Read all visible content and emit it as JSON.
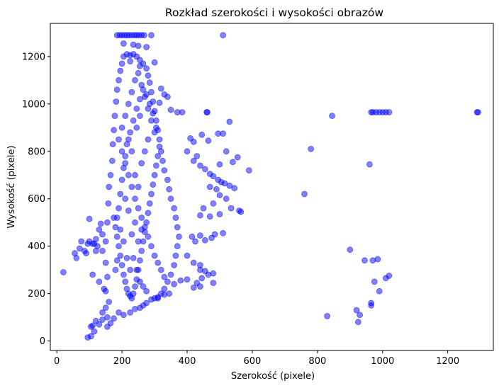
{
  "chart_data": {
    "type": "scatter",
    "title": "Rozkład szerokości i wysokości obrazów",
    "xlabel": "Szerokość (pixele)",
    "ylabel": "Wysokość (pixele)",
    "xlim": [
      -20,
      1340
    ],
    "ylim": [
      -40,
      1340
    ],
    "xticks": [
      0,
      200,
      400,
      600,
      800,
      1000,
      1200
    ],
    "yticks": [
      0,
      200,
      400,
      600,
      800,
      1000,
      1200
    ],
    "grid": false,
    "legend": "none",
    "marker_color": "#0000ff",
    "marker_alpha": 0.5,
    "series": [
      {
        "points": [
          [
            185,
            1290
          ],
          [
            193,
            1290
          ],
          [
            200,
            1290
          ],
          [
            208,
            1290
          ],
          [
            215,
            1290
          ],
          [
            222,
            1290
          ],
          [
            230,
            1290
          ],
          [
            238,
            1290
          ],
          [
            245,
            1290
          ],
          [
            252,
            1290
          ],
          [
            260,
            1290
          ],
          [
            268,
            1290
          ],
          [
            290,
            1290
          ],
          [
            510,
            1290
          ],
          [
            205,
            1255
          ],
          [
            235,
            1250
          ],
          [
            250,
            1245
          ],
          [
            275,
            1240
          ],
          [
            300,
            1175
          ],
          [
            225,
            1180
          ],
          [
            255,
            1160
          ],
          [
            320,
            1065
          ],
          [
            330,
            1040
          ],
          [
            340,
            1030
          ],
          [
            315,
            1005
          ],
          [
            350,
            975
          ],
          [
            370,
            965
          ],
          [
            385,
            965
          ],
          [
            460,
            965
          ],
          [
            462,
            965
          ],
          [
            530,
            925
          ],
          [
            510,
            875
          ],
          [
            495,
            875
          ],
          [
            445,
            870
          ],
          [
            465,
            845
          ],
          [
            520,
            800
          ],
          [
            410,
            855
          ],
          [
            420,
            840
          ],
          [
            400,
            800
          ],
          [
            430,
            780
          ],
          [
            420,
            760
          ],
          [
            440,
            740
          ],
          [
            455,
            725
          ],
          [
            470,
            705
          ],
          [
            480,
            695
          ],
          [
            495,
            680
          ],
          [
            505,
            670
          ],
          [
            515,
            665
          ],
          [
            530,
            655
          ],
          [
            545,
            645
          ],
          [
            555,
            775
          ],
          [
            590,
            720
          ],
          [
            540,
            755
          ],
          [
            500,
            745
          ],
          [
            470,
            650
          ],
          [
            490,
            640
          ],
          [
            520,
            600
          ],
          [
            535,
            560
          ],
          [
            560,
            550
          ],
          [
            565,
            545
          ],
          [
            500,
            615
          ],
          [
            480,
            580
          ],
          [
            450,
            560
          ],
          [
            440,
            530
          ],
          [
            470,
            525
          ],
          [
            500,
            535
          ],
          [
            510,
            455
          ],
          [
            485,
            450
          ],
          [
            475,
            435
          ],
          [
            455,
            425
          ],
          [
            440,
            445
          ],
          [
            425,
            420
          ],
          [
            415,
            440
          ],
          [
            400,
            360
          ],
          [
            420,
            330
          ],
          [
            440,
            320
          ],
          [
            440,
            300
          ],
          [
            455,
            295
          ],
          [
            465,
            280
          ],
          [
            480,
            285
          ],
          [
            445,
            265
          ],
          [
            430,
            245
          ],
          [
            440,
            230
          ],
          [
            420,
            225
          ],
          [
            480,
            245
          ],
          [
            400,
            260
          ],
          [
            380,
            255
          ],
          [
            360,
            240
          ],
          [
            345,
            200
          ],
          [
            330,
            195
          ],
          [
            310,
            185
          ],
          [
            300,
            180
          ],
          [
            290,
            175
          ],
          [
            275,
            160
          ],
          [
            265,
            150
          ],
          [
            255,
            140
          ],
          [
            240,
            135
          ],
          [
            225,
            120
          ],
          [
            205,
            110
          ],
          [
            190,
            120
          ],
          [
            175,
            95
          ],
          [
            165,
            75
          ],
          [
            155,
            100
          ],
          [
            140,
            90
          ],
          [
            130,
            70
          ],
          [
            120,
            85
          ],
          [
            110,
            65
          ],
          [
            105,
            60
          ],
          [
            95,
            15
          ],
          [
            105,
            20
          ],
          [
            115,
            40
          ],
          [
            155,
            60
          ],
          [
            140,
            120
          ],
          [
            150,
            140
          ],
          [
            160,
            165
          ],
          [
            20,
            290
          ],
          [
            55,
            370
          ],
          [
            60,
            350
          ],
          [
            70,
            390
          ],
          [
            75,
            420
          ],
          [
            85,
            380
          ],
          [
            90,
            370
          ],
          [
            95,
            410
          ],
          [
            100,
            420
          ],
          [
            110,
            410
          ],
          [
            120,
            430
          ],
          [
            130,
            470
          ],
          [
            135,
            495
          ],
          [
            140,
            450
          ],
          [
            100,
            515
          ],
          [
            115,
            410
          ],
          [
            125,
            400
          ],
          [
            120,
            380
          ],
          [
            140,
            380
          ],
          [
            150,
            330
          ],
          [
            130,
            250
          ],
          [
            110,
            280
          ],
          [
            145,
            220
          ],
          [
            150,
            210
          ],
          [
            155,
            270
          ],
          [
            150,
            420
          ],
          [
            155,
            500
          ],
          [
            158,
            580
          ],
          [
            160,
            650
          ],
          [
            165,
            700
          ],
          [
            170,
            760
          ],
          [
            172,
            830
          ],
          [
            175,
            890
          ],
          [
            178,
            950
          ],
          [
            182,
            1010
          ],
          [
            185,
            1060
          ],
          [
            190,
            1100
          ],
          [
            195,
            1140
          ],
          [
            200,
            1170
          ],
          [
            205,
            1200
          ],
          [
            215,
            1210
          ],
          [
            225,
            1205
          ],
          [
            235,
            1210
          ],
          [
            245,
            1200
          ],
          [
            255,
            1185
          ],
          [
            265,
            1170
          ],
          [
            275,
            1150
          ],
          [
            280,
            1120
          ],
          [
            285,
            1090
          ],
          [
            290,
            1050
          ],
          [
            295,
            1010
          ],
          [
            300,
            970
          ],
          [
            305,
            930
          ],
          [
            310,
            890
          ],
          [
            315,
            850
          ],
          [
            320,
            800
          ],
          [
            325,
            760
          ],
          [
            330,
            720
          ],
          [
            340,
            680
          ],
          [
            345,
            640
          ],
          [
            350,
            600
          ],
          [
            360,
            560
          ],
          [
            365,
            520
          ],
          [
            370,
            480
          ],
          [
            375,
            440
          ],
          [
            370,
            400
          ],
          [
            365,
            360
          ],
          [
            360,
            320
          ],
          [
            350,
            280
          ],
          [
            340,
            250
          ],
          [
            330,
            220
          ],
          [
            320,
            200
          ],
          [
            310,
            180
          ],
          [
            175,
            520
          ],
          [
            180,
            480
          ],
          [
            185,
            440
          ],
          [
            190,
            400
          ],
          [
            195,
            360
          ],
          [
            200,
            320
          ],
          [
            205,
            280
          ],
          [
            210,
            250
          ],
          [
            215,
            220
          ],
          [
            220,
            200
          ],
          [
            225,
            190
          ],
          [
            230,
            180
          ],
          [
            235,
            200
          ],
          [
            240,
            230
          ],
          [
            245,
            260
          ],
          [
            250,
            300
          ],
          [
            255,
            340
          ],
          [
            260,
            380
          ],
          [
            265,
            420
          ],
          [
            270,
            460
          ],
          [
            275,
            500
          ],
          [
            280,
            540
          ],
          [
            285,
            580
          ],
          [
            290,
            620
          ],
          [
            295,
            660
          ],
          [
            300,
            700
          ],
          [
            305,
            740
          ],
          [
            310,
            780
          ],
          [
            315,
            820
          ],
          [
            200,
            900
          ],
          [
            210,
            950
          ],
          [
            220,
            1000
          ],
          [
            230,
            1050
          ],
          [
            240,
            1100
          ],
          [
            250,
            1130
          ],
          [
            260,
            1080
          ],
          [
            270,
            1030
          ],
          [
            280,
            980
          ],
          [
            290,
            930
          ],
          [
            300,
            880
          ],
          [
            190,
            850
          ],
          [
            200,
            800
          ],
          [
            210,
            750
          ],
          [
            220,
            700
          ],
          [
            230,
            650
          ],
          [
            240,
            600
          ],
          [
            250,
            560
          ],
          [
            260,
            520
          ],
          [
            270,
            480
          ],
          [
            280,
            440
          ],
          [
            290,
            400
          ],
          [
            300,
            360
          ],
          [
            310,
            330
          ],
          [
            320,
            300
          ],
          [
            330,
            270
          ],
          [
            180,
            300
          ],
          [
            185,
            340
          ],
          [
            190,
            560
          ],
          [
            195,
            620
          ],
          [
            200,
            680
          ],
          [
            205,
            730
          ],
          [
            210,
            780
          ],
          [
            215,
            830
          ],
          [
            225,
            880
          ],
          [
            235,
            930
          ],
          [
            245,
            980
          ],
          [
            255,
            1020
          ],
          [
            265,
            1060
          ],
          [
            275,
            1040
          ],
          [
            285,
            1000
          ],
          [
            295,
            960
          ],
          [
            305,
            900
          ],
          [
            230,
            450
          ],
          [
            240,
            500
          ],
          [
            250,
            420
          ],
          [
            260,
            470
          ],
          [
            220,
            550
          ],
          [
            210,
            600
          ],
          [
            240,
            700
          ],
          [
            250,
            650
          ],
          [
            260,
            750
          ],
          [
            270,
            800
          ],
          [
            280,
            850
          ],
          [
            230,
            800
          ],
          [
            220,
            850
          ],
          [
            245,
            900
          ],
          [
            255,
            950
          ],
          [
            235,
            350
          ],
          [
            245,
            300
          ],
          [
            255,
            250
          ],
          [
            265,
            230
          ],
          [
            275,
            210
          ],
          [
            225,
            300
          ],
          [
            215,
            350
          ],
          [
            205,
            420
          ],
          [
            195,
            470
          ],
          [
            185,
            520
          ],
          [
            760,
            620
          ],
          [
            780,
            810
          ],
          [
            845,
            950
          ],
          [
            900,
            385
          ],
          [
            830,
            105
          ],
          [
            920,
            130
          ],
          [
            925,
            80
          ],
          [
            930,
            110
          ],
          [
            945,
            340
          ],
          [
            960,
            745
          ],
          [
            965,
            160
          ],
          [
            965,
            150
          ],
          [
            970,
            340
          ],
          [
            985,
            345
          ],
          [
            975,
            250
          ],
          [
            990,
            210
          ],
          [
            1010,
            265
          ],
          [
            1020,
            275
          ],
          [
            965,
            965
          ],
          [
            970,
            965
          ],
          [
            980,
            965
          ],
          [
            990,
            965
          ],
          [
            1000,
            965
          ],
          [
            1010,
            965
          ],
          [
            1020,
            965
          ],
          [
            1290,
            965
          ],
          [
            1293,
            965
          ]
        ]
      }
    ]
  }
}
